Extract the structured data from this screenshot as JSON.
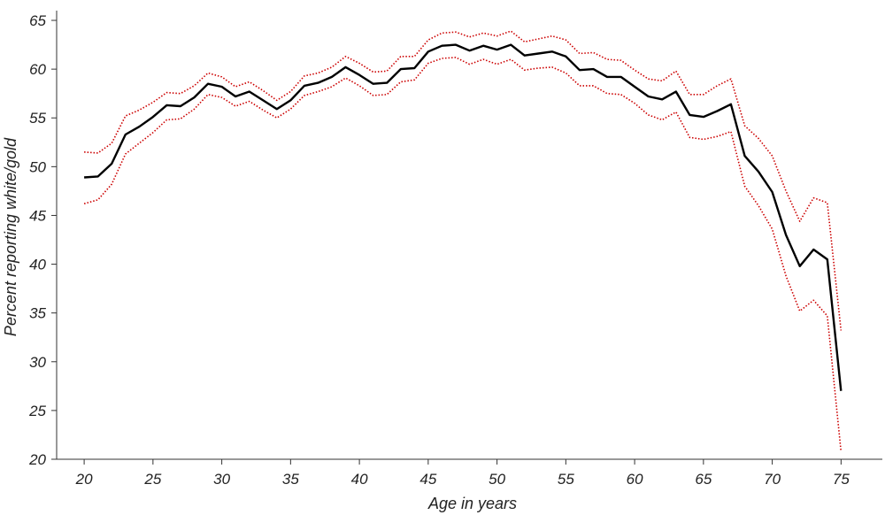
{
  "chart_data": {
    "type": "line",
    "title": "",
    "xlabel": "Age in years",
    "ylabel": "Percent reporting white/gold",
    "xlim": [
      18,
      78
    ],
    "ylim": [
      20,
      66
    ],
    "xticks": [
      20,
      25,
      30,
      35,
      40,
      45,
      50,
      55,
      60,
      65,
      70,
      75
    ],
    "yticks": [
      20,
      25,
      30,
      35,
      40,
      45,
      50,
      55,
      60,
      65
    ],
    "grid": false,
    "legend": "none",
    "x": [
      20,
      21,
      22,
      23,
      24,
      25,
      26,
      27,
      28,
      29,
      30,
      31,
      32,
      33,
      34,
      35,
      36,
      37,
      38,
      39,
      40,
      41,
      42,
      43,
      44,
      45,
      46,
      47,
      48,
      49,
      50,
      51,
      52,
      53,
      54,
      55,
      56,
      57,
      58,
      59,
      60,
      61,
      62,
      63,
      64,
      65,
      66,
      67,
      68,
      69,
      70,
      71,
      72,
      73,
      74,
      75
    ],
    "series": [
      {
        "style": "solid",
        "color": "#000000",
        "values": [
          48.9,
          49.0,
          50.3,
          53.3,
          54.1,
          55.1,
          56.3,
          56.2,
          57.1,
          58.5,
          58.2,
          57.2,
          57.7,
          56.8,
          55.9,
          56.8,
          58.3,
          58.6,
          59.2,
          60.2,
          59.4,
          58.5,
          58.6,
          60.0,
          60.1,
          61.8,
          62.4,
          62.5,
          61.9,
          62.4,
          62.0,
          62.5,
          61.4,
          61.6,
          61.8,
          61.3,
          59.9,
          60.0,
          59.2,
          59.2,
          58.2,
          57.2,
          56.9,
          57.7,
          55.3,
          55.1,
          55.7,
          56.4,
          51.1,
          49.5,
          47.4,
          43.0,
          39.8,
          41.5,
          40.5,
          27.0
        ]
      },
      {
        "style": "dotted",
        "color": "#cc0000",
        "values": [
          51.5,
          51.4,
          52.4,
          55.2,
          55.8,
          56.6,
          57.6,
          57.5,
          58.3,
          59.6,
          59.2,
          58.2,
          58.7,
          57.8,
          56.8,
          57.7,
          59.3,
          59.6,
          60.2,
          61.3,
          60.6,
          59.7,
          59.8,
          61.3,
          61.3,
          63.0,
          63.7,
          63.8,
          63.3,
          63.7,
          63.4,
          63.9,
          62.8,
          63.1,
          63.4,
          63.0,
          61.6,
          61.7,
          61.0,
          60.9,
          59.9,
          59.0,
          58.8,
          59.8,
          57.4,
          57.4,
          58.3,
          59.0,
          54.2,
          52.9,
          51.1,
          47.5,
          44.4,
          46.8,
          46.3,
          33.2
        ]
      },
      {
        "style": "dotted",
        "color": "#cc0000",
        "values": [
          46.2,
          46.6,
          48.2,
          51.3,
          52.4,
          53.5,
          54.8,
          54.9,
          55.9,
          57.4,
          57.1,
          56.2,
          56.7,
          55.8,
          55.0,
          55.9,
          57.3,
          57.7,
          58.2,
          59.1,
          58.3,
          57.3,
          57.4,
          58.7,
          58.9,
          60.6,
          61.1,
          61.2,
          60.5,
          61.0,
          60.5,
          61.0,
          59.9,
          60.1,
          60.2,
          59.6,
          58.3,
          58.3,
          57.5,
          57.4,
          56.5,
          55.3,
          54.8,
          55.6,
          53.0,
          52.8,
          53.1,
          53.6,
          48.0,
          46.0,
          43.6,
          38.8,
          35.2,
          36.3,
          34.7,
          20.8
        ]
      }
    ]
  }
}
